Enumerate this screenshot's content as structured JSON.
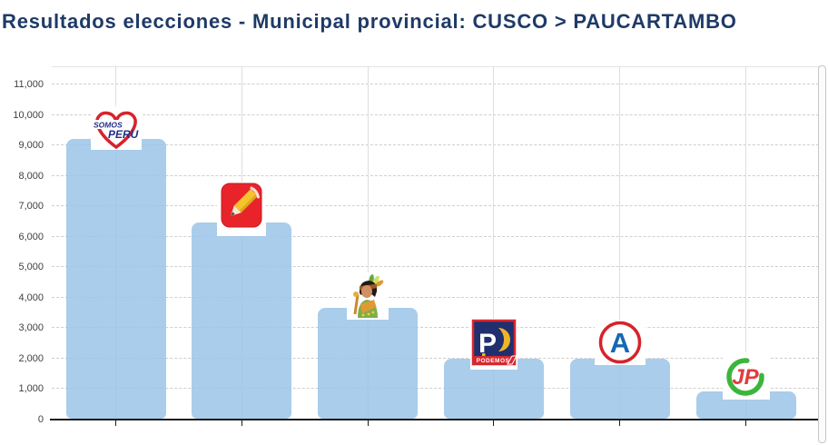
{
  "header": {
    "title": "Resultados elecciones - Municipal provincial: CUSCO > PAUCARTAMBO"
  },
  "chart_data": {
    "type": "bar",
    "title": "Resultados elecciones - Municipal provincial: CUSCO > PAUCARTAMBO",
    "categories": [
      "Somos Perú (heart logo)",
      "Perú Libre (red pencil logo)",
      "Inca figure (regional movement logo)",
      "Podemos Perú (P logo)",
      "Alianza para el Progreso (A circle logo)",
      "Juntos por el Perú (JP logo)"
    ],
    "values": [
      9210,
      6470,
      3670,
      1990,
      2010,
      930
    ],
    "xlabel": "",
    "ylabel": "",
    "ylim": [
      0,
      11000
    ],
    "ytick_step": 1000,
    "ytick_labels": [
      "0",
      "1,000",
      "2,000",
      "3,000",
      "4,000",
      "5,000",
      "6,000",
      "7,000",
      "8,000",
      "9,000",
      "10,000",
      "11,000"
    ],
    "grid": {
      "horizontal": "dashed",
      "vertical": "solid-at-bar-centers"
    },
    "legend": "none",
    "bar_color": "#a9cdeb"
  },
  "logos": {
    "somos_peru": {
      "text_top": "SOMOS",
      "text_bottom": "PERU"
    },
    "podemos": {
      "letter": "P",
      "caption": "PODEMOS"
    },
    "app": {
      "letter": "A"
    },
    "jp": {
      "text": "JP"
    }
  },
  "colors": {
    "title": "#1e3a67",
    "bar": "#a9cdeb",
    "axis": "#1c1c1c",
    "grid_dashed": "#cfcfcf",
    "grid_vertical": "#dedede",
    "tick_label": "#3f3f3f",
    "somos_red": "#d6232b",
    "somos_blue": "#232e8a",
    "pencil_red": "#e8242a",
    "pencil_yellow": "#f6c22d",
    "podemos_navy": "#20306e",
    "podemos_red": "#d7282f",
    "podemos_yellow": "#f0b429",
    "app_red": "#d6232b",
    "app_blue": "#1668b3",
    "jp_green": "#3db53d",
    "jp_red": "#e23b3e"
  }
}
